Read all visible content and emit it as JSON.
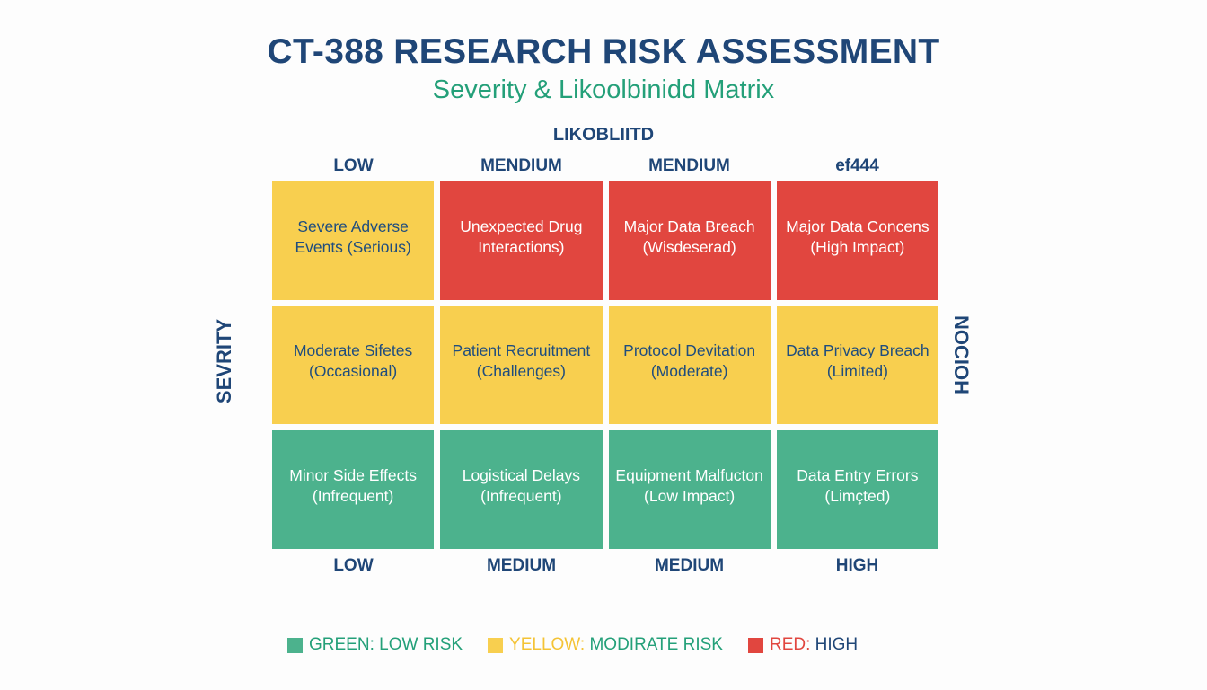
{
  "header": {
    "title": "CT-388 RESEARCH RISK ASSESSMENT",
    "subtitle": "Severity & Likoolbinidd Matrix"
  },
  "axes": {
    "top_label": "LIKOBLIITD",
    "left_label": "SEVRITY",
    "right_label": "NOCIOH",
    "top_columns": [
      "LOW",
      "MENDIUM",
      "MENDIUM",
      "ef444"
    ],
    "bottom_columns": [
      "LOW",
      "MEDIUM",
      "MEDIUM",
      "HIGH"
    ]
  },
  "colors": {
    "red": "#e1463f",
    "yellow": "#f8cf4f",
    "green": "#4cb28d",
    "navy": "#1f4677",
    "teal": "#24a079"
  },
  "matrix": {
    "rows": [
      {
        "cells": [
          {
            "line1": "Severe Adverse",
            "line2": "Events (Serious)",
            "risk": "yellow"
          },
          {
            "line1": "Unexpected Drug",
            "line2": "Interactions)",
            "risk": "red"
          },
          {
            "line1": "Major Data Breach",
            "line2": "(Wisdeserad)",
            "risk": "red"
          },
          {
            "line1": "Major Data Concens",
            "line2": "(High Impact)",
            "risk": "red"
          }
        ]
      },
      {
        "cells": [
          {
            "line1": "Moderate Sifetes",
            "line2": "(Occasional)",
            "risk": "yellow"
          },
          {
            "line1": "Patient Recruitment",
            "line2": "(Challenges)",
            "risk": "yellow"
          },
          {
            "line1": "Protocol Devitation",
            "line2": "(Moderate)",
            "risk": "yellow"
          },
          {
            "line1": "Data Privacy Breach",
            "line2": "(Limited)",
            "risk": "yellow"
          }
        ]
      },
      {
        "cells": [
          {
            "line1": "Minor Side Effects",
            "line2": "(Infrequent)",
            "risk": "green"
          },
          {
            "line1": "Logistical Delays",
            "line2": "(Infrequent)",
            "risk": "green"
          },
          {
            "line1": "Equipment Malfucton",
            "line2": "(Low Impact)",
            "risk": "green"
          },
          {
            "line1": "Data Entry Errors",
            "line2": "(Limçted)",
            "risk": "green"
          }
        ]
      }
    ]
  },
  "legend": {
    "green_key": "GREEN:",
    "green_value": "LOW RISK",
    "yellow_key": "YELLOW:",
    "yellow_value": "MODIRATE RISK",
    "red_key": "RED:",
    "red_value": "HIGH"
  }
}
